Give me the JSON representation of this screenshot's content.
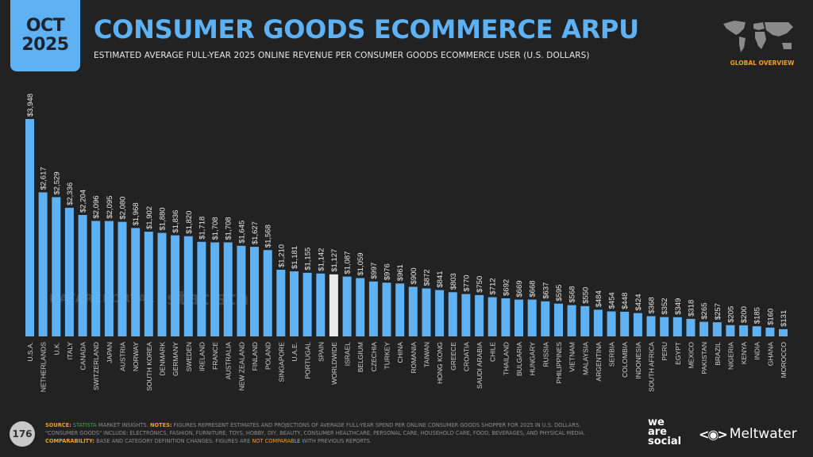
{
  "header": {
    "date_month": "OCT",
    "date_year": "2025",
    "title": "CONSUMER GOODS ECOMMERCE ARPU",
    "subtitle": "ESTIMATED AVERAGE FULL-YEAR 2025 ONLINE REVENUE PER CONSUMER GOODS ECOMMERCE USER (U.S. DOLLARS)",
    "badge": "GLOBAL OVERVIEW",
    "map_icon": "world-map-icon"
  },
  "watermarks": [
    "DATAREPORTAL",
    "statista"
  ],
  "footer": {
    "page_number": "176",
    "source_key": "SOURCE:",
    "source_name": "STATISTA",
    "source_rest": " MARKET INSIGHTS.",
    "notes_key": " NOTES:",
    "notes_text": " FIGURES REPRESENT ESTIMATES AND PROJECTIONS OF AVERAGE FULL-YEAR SPEND PER ONLINE CONSUMER GOODS SHOPPER FOR 2025 IN U.S. DOLLARS.",
    "notes_line2": "\"CONSUMER GOODS\" INCLUDE: ELECTRONICS, FASHION, FURNITURE, TOYS, HOBBY, DIY, BEAUTY, CONSUMER HEALTHCARE, PERSONAL CARE, HOUSEHOLD CARE, FOOD, BEVERAGES, AND PHYSICAL MEDIA.",
    "comparability_key": "COMPARABILITY:",
    "comparability_text": " BASE AND CATEGORY DEFINITION CHANGES. FIGURES ARE ",
    "comparability_highlight": "NOT COMPARABLE",
    "comparability_end": " WITH PREVIOUS REPORTS."
  },
  "brands": {
    "we_are_social": [
      "we",
      "are",
      "social"
    ],
    "meltwater": "Meltwater"
  },
  "colors": {
    "bar": "#5eb1f2",
    "highlight_bar": "#ececec",
    "accent": "#f39c26",
    "background": "#222222"
  },
  "chart_data": {
    "type": "bar",
    "title": "CONSUMER GOODS ECOMMERCE ARPU",
    "xlabel": "",
    "ylabel": "U.S. Dollars",
    "value_prefix": "$",
    "grid": false,
    "legend": "none",
    "highlight_category": "WORLDWIDE",
    "categories": [
      "U.S.A.",
      "NETHERLANDS",
      "U.K.",
      "ITALY",
      "CANADA",
      "SWITZERLAND",
      "JAPAN",
      "AUSTRIA",
      "NORWAY",
      "SOUTH KOREA",
      "DENMARK",
      "GERMANY",
      "SWEDEN",
      "IRELAND",
      "FRANCE",
      "AUSTRALIA",
      "NEW ZEALAND",
      "FINLAND",
      "POLAND",
      "SINGAPORE",
      "U.A.E.",
      "PORTUGAL",
      "SPAIN",
      "WORLDWIDE",
      "ISRAEL",
      "BELGIUM",
      "CZECHIA",
      "TURKEY",
      "CHINA",
      "ROMANIA",
      "TAIWAN",
      "HONG KONG",
      "GREECE",
      "CROATIA",
      "SAUDI ARABIA",
      "CHILE",
      "THAILAND",
      "BULGARIA",
      "HUNGARY",
      "RUSSIA",
      "PHILIPPINES",
      "VIETNAM",
      "MALAYSIA",
      "ARGENTINA",
      "SERBIA",
      "COLOMBIA",
      "INDONESIA",
      "SOUTH AFRICA",
      "PERU",
      "EGYPT",
      "MEXICO",
      "PAKISTAN",
      "BRAZIL",
      "NIGERIA",
      "KENYA",
      "INDIA",
      "GHANA",
      "MOROCCO"
    ],
    "values": [
      3948,
      2617,
      2529,
      2336,
      2204,
      2096,
      2095,
      2080,
      1968,
      1902,
      1880,
      1836,
      1820,
      1718,
      1708,
      1708,
      1645,
      1627,
      1568,
      1210,
      1181,
      1155,
      1142,
      1127,
      1087,
      1059,
      997,
      976,
      961,
      900,
      872,
      841,
      803,
      770,
      750,
      712,
      692,
      669,
      668,
      637,
      595,
      568,
      550,
      484,
      454,
      448,
      424,
      368,
      352,
      349,
      318,
      265,
      257,
      205,
      200,
      185,
      160,
      131
    ],
    "ylim": [
      0,
      3948
    ]
  }
}
